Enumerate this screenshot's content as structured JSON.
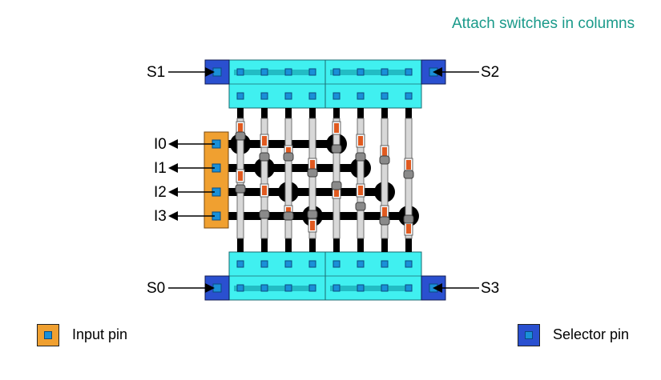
{
  "diagram": {
    "title": "Attach switches in columns",
    "selector_pins": [
      "S1",
      "S2",
      "S0",
      "S3"
    ],
    "input_pins": [
      "I0",
      "I1",
      "I2",
      "I3"
    ]
  },
  "legend": {
    "input_label": "Input pin",
    "selector_label": "Selector pin"
  },
  "colors": {
    "title": "#1a9a8a",
    "cyan_block": "#40f0f0",
    "input_pin": "#f0a030",
    "selector_pin": "#2a50d0",
    "pin_dot": "#1a90d8",
    "switch": "#e05a20",
    "wire": "#000000"
  }
}
